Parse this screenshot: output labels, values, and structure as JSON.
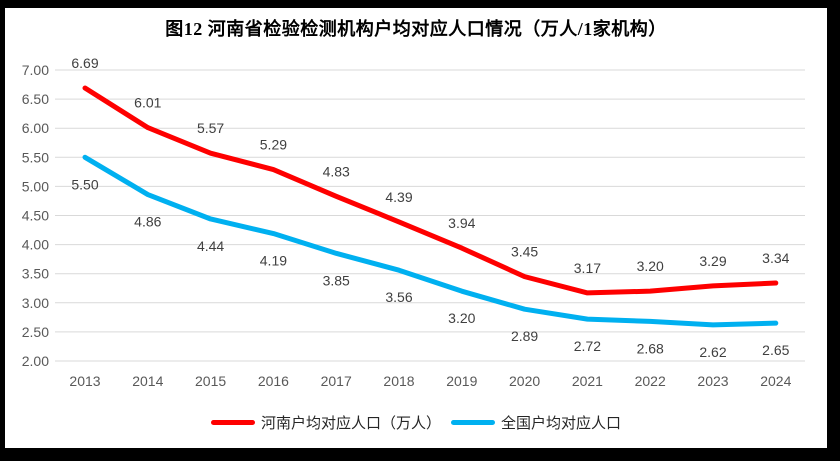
{
  "figure": {
    "title": "图12  河南省检验检测机构户均对应人口情况（万人/1家机构）"
  },
  "chart_data": {
    "type": "line",
    "title": "图12  河南省检验检测机构户均对应人口情况（万人/1家机构）",
    "categories": [
      "2013",
      "2014",
      "2015",
      "2016",
      "2017",
      "2018",
      "2019",
      "2020",
      "2021",
      "2022",
      "2023",
      "2024"
    ],
    "series": [
      {
        "name": "河南户均对应人口（万人）",
        "color": "#FE0000",
        "values": [
          6.69,
          6.01,
          5.57,
          5.29,
          4.83,
          4.39,
          3.94,
          3.45,
          3.17,
          3.2,
          3.29,
          3.34
        ],
        "label_position": "above"
      },
      {
        "name": "全国户均对应人口",
        "color": "#00B0F0",
        "values": [
          5.5,
          4.86,
          4.44,
          4.19,
          3.85,
          3.56,
          3.2,
          2.89,
          2.72,
          2.68,
          2.62,
          2.65
        ],
        "label_position": "below"
      }
    ],
    "xlabel": "",
    "ylabel": "",
    "ylim": [
      2.0,
      7.0
    ],
    "ytick_step": 0.5,
    "ytick_format_decimals": 2,
    "grid": true,
    "legend_position": "bottom"
  },
  "style": {
    "grid_color": "#D9D9D9",
    "axis_label_color": "#595959",
    "data_label_color": "#404040",
    "frame_color": "#000000",
    "background": "#FFFFFF"
  }
}
